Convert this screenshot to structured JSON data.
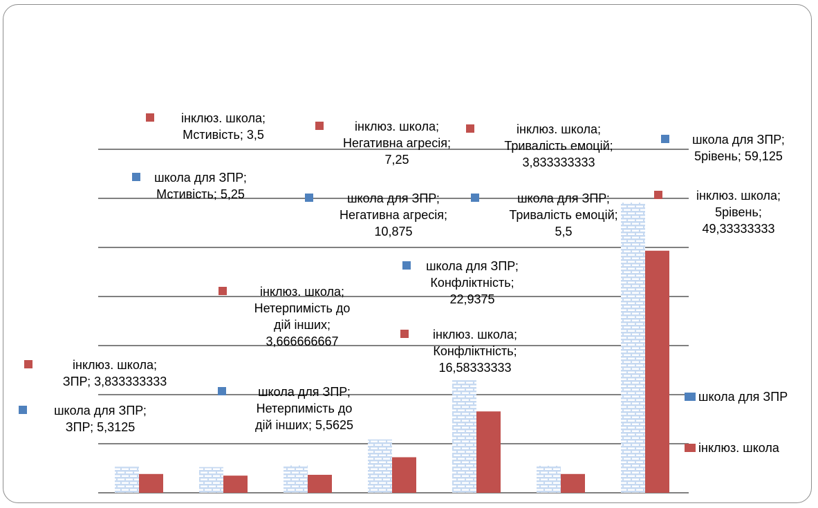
{
  "chart_data": {
    "type": "bar",
    "categories": [
      "ЗПР",
      "Мстивість",
      "Нетерпимість до дій інших",
      "Негативна агресія",
      "Конфліктність",
      "Тривалість емоцій",
      "5рівень"
    ],
    "series": [
      {
        "name": "школа для ЗПР",
        "values": [
          5.3125,
          5.25,
          5.5625,
          10.875,
          22.9375,
          5.5,
          59.125
        ],
        "color": "#4f81bd",
        "pattern": "brick"
      },
      {
        "name": "інклюз. школа",
        "values": [
          3.833333333,
          3.5,
          3.666666667,
          7.25,
          16.58333333,
          3.833333333,
          49.33333333
        ],
        "color": "#c0504d"
      }
    ],
    "legend_position": "right",
    "grid": true,
    "data_labels": {
      "school": [
        [
          "школа для ЗПР;",
          "ЗПР; 5,3125"
        ],
        [
          "школа для ЗПР;",
          "Мстивість; 5,25"
        ],
        [
          "школа для ЗПР;",
          "Нетерпимість до",
          "дій інших; 5,5625"
        ],
        [
          "школа для ЗПР;",
          "Негативна агресія;",
          "10,875"
        ],
        [
          "школа для ЗПР;",
          "Конфліктність;",
          "22,9375"
        ],
        [
          "школа для ЗПР;",
          "Тривалість емоцій;",
          "5,5"
        ],
        [
          "школа для ЗПР;",
          "5рівень; 59,125"
        ]
      ],
      "inclusive": [
        [
          "інклюз. школа;",
          "ЗПР; 3,833333333"
        ],
        [
          "інклюз. школа;",
          "Мстивість; 3,5"
        ],
        [
          "інклюз. школа;",
          "Нетерпимість до",
          "дій інших;",
          "3,666666667"
        ],
        [
          "інклюз. школа;",
          "Негативна агресія;",
          "7,25"
        ],
        [
          "інклюз. школа;",
          "Конфліктність;",
          "16,58333333"
        ],
        [
          "інклюз. школа;",
          "Тривалість емоцій;",
          "3,833333333"
        ],
        [
          "інклюз. школа;",
          "5рівень;",
          "49,33333333"
        ]
      ]
    }
  }
}
